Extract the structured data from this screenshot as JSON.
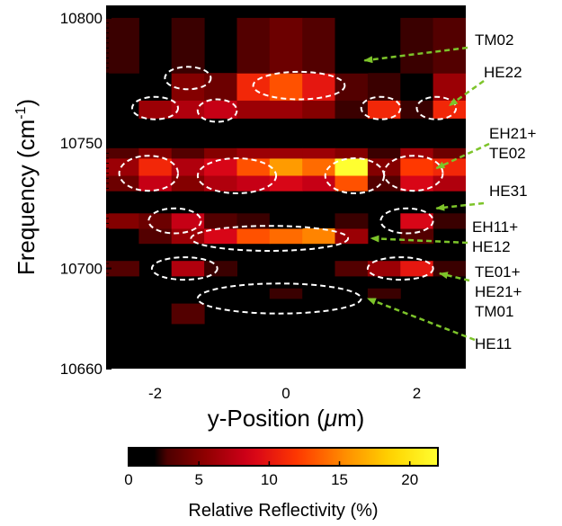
{
  "chart_data": {
    "type": "heatmap",
    "xlabel": "y-Position (",
    "xlabel_unit_symbol": "μ",
    "xlabel_unit_rest": "m)",
    "ylabel": "Frequency (cm",
    "ylabel_sup": "-1",
    "ylabel_close": ")",
    "xlim": [
      -2.75,
      2.75
    ],
    "ylim": [
      10660,
      10805
    ],
    "x_ticks": [
      -2,
      0,
      2
    ],
    "x_tick_labels": [
      "-2",
      "0",
      "2"
    ],
    "y_ticks": [
      10660,
      10700,
      10750,
      10800
    ],
    "y_tick_labels": [
      "10660",
      "10700",
      "10750",
      "10800"
    ],
    "colorbar": {
      "title": "Relative Reflectivity (%)",
      "range": [
        0,
        22
      ],
      "ticks": [
        0,
        5,
        10,
        15,
        20
      ],
      "tick_labels": [
        "0",
        "5",
        "10",
        "15",
        "20"
      ],
      "colormap": [
        "#000000",
        "#3a0000",
        "#8c0000",
        "#d4001a",
        "#ff3800",
        "#ff8c00",
        "#ffd400",
        "#ffff30"
      ]
    },
    "columns_x": [
      -2.5,
      -2.0,
      -1.5,
      -1.0,
      -0.5,
      0.0,
      0.5,
      1.0,
      1.5,
      2.0,
      2.5
    ],
    "column_width": 0.5,
    "bands": [
      {
        "y0": 10737,
        "y1": 10744,
        "values": [
          6,
          11,
          7,
          9,
          13,
          16,
          14,
          22,
          5,
          12,
          11
        ]
      },
      {
        "y0": 10731,
        "y1": 10737,
        "values": [
          4,
          8,
          5,
          7,
          8,
          9,
          8,
          13,
          3,
          9,
          7
        ]
      },
      {
        "y0": 10744,
        "y1": 10748,
        "values": [
          3,
          5,
          3,
          5,
          6,
          6,
          6,
          5,
          2,
          6,
          4
        ]
      },
      {
        "y0": 10767,
        "y1": 10778,
        "values": [
          0,
          0,
          5,
          4,
          11,
          13,
          10,
          3,
          2,
          1,
          6
        ]
      },
      {
        "y0": 10760,
        "y1": 10767,
        "values": [
          0,
          6,
          7,
          8,
          6,
          6,
          5,
          2,
          11,
          2,
          11
        ]
      },
      {
        "y0": 10778,
        "y1": 10800,
        "values": [
          2,
          0,
          2,
          0,
          3,
          4,
          3,
          1,
          0,
          2,
          3
        ]
      },
      {
        "y0": 10710,
        "y1": 10716,
        "values": [
          0,
          3,
          6,
          9,
          13,
          14,
          15,
          6,
          0,
          3,
          0
        ]
      },
      {
        "y0": 10716,
        "y1": 10722,
        "values": [
          5,
          4,
          8,
          3,
          2,
          1,
          0,
          2,
          0,
          9,
          2
        ]
      },
      {
        "y0": 10697,
        "y1": 10703,
        "values": [
          3,
          0,
          7,
          2,
          0,
          0,
          1,
          3,
          6,
          10,
          2
        ]
      },
      {
        "y0": 10688,
        "y1": 10692,
        "values": [
          0,
          0,
          0,
          0,
          1,
          2,
          1,
          0,
          2,
          0,
          0
        ]
      },
      {
        "y0": 10678,
        "y1": 10686,
        "values": [
          0,
          0,
          3,
          0,
          0,
          0,
          0,
          0,
          0,
          0,
          0
        ]
      }
    ],
    "annotations": [
      {
        "label": "TM02",
        "lines": [
          "TM02"
        ],
        "target": [
          1.2,
          10783
        ]
      },
      {
        "label": "HE22",
        "lines": [
          "HE22"
        ],
        "target": [
          2.5,
          10765
        ]
      },
      {
        "label": "EH21+TE02",
        "lines": [
          "EH21+",
          "TE02"
        ],
        "target": [
          2.3,
          10740
        ]
      },
      {
        "label": "HE31",
        "lines": [
          "HE31"
        ],
        "target": [
          2.3,
          10724
        ]
      },
      {
        "label": "EH11+HE12",
        "lines": [
          "EH11+",
          "HE12"
        ],
        "target": [
          1.3,
          10712
        ]
      },
      {
        "label": "TE01+HE21+TM01",
        "lines": [
          "TE01+",
          "HE21+",
          "TM01"
        ],
        "target": [
          2.35,
          10698
        ]
      },
      {
        "label": "HE11",
        "lines": [
          "HE11"
        ],
        "target": [
          1.25,
          10688
        ]
      }
    ],
    "mode_ellipses": [
      {
        "cx": 0.2,
        "cy": 10773,
        "rx": 0.7,
        "ry": 5.5
      },
      {
        "cx": -1.5,
        "cy": 10776,
        "rx": 0.35,
        "ry": 4.5
      },
      {
        "cx": -2.0,
        "cy": 10764,
        "rx": 0.35,
        "ry": 4.5
      },
      {
        "cx": -1.05,
        "cy": 10763,
        "rx": 0.3,
        "ry": 4.5
      },
      {
        "cx": 1.45,
        "cy": 10764,
        "rx": 0.3,
        "ry": 4.5
      },
      {
        "cx": 2.3,
        "cy": 10764,
        "rx": 0.3,
        "ry": 4.5
      },
      {
        "cx": -2.1,
        "cy": 10738,
        "rx": 0.45,
        "ry": 7
      },
      {
        "cx": -0.75,
        "cy": 10737,
        "rx": 0.6,
        "ry": 7
      },
      {
        "cx": 1.05,
        "cy": 10737,
        "rx": 0.45,
        "ry": 7
      },
      {
        "cx": 1.95,
        "cy": 10738,
        "rx": 0.45,
        "ry": 7
      },
      {
        "cx": -1.7,
        "cy": 10719,
        "rx": 0.4,
        "ry": 5
      },
      {
        "cx": 1.85,
        "cy": 10719,
        "rx": 0.4,
        "ry": 5
      },
      {
        "cx": -0.25,
        "cy": 10712,
        "rx": 1.2,
        "ry": 5
      },
      {
        "cx": -1.55,
        "cy": 10700,
        "rx": 0.5,
        "ry": 4.5
      },
      {
        "cx": 1.75,
        "cy": 10700,
        "rx": 0.5,
        "ry": 4.5
      },
      {
        "cx": -0.1,
        "cy": 10688,
        "rx": 1.25,
        "ry": 6
      }
    ],
    "colors": {
      "ellipse": "#ffffff",
      "arrow": "#7dc42a",
      "background": "#000000"
    }
  }
}
